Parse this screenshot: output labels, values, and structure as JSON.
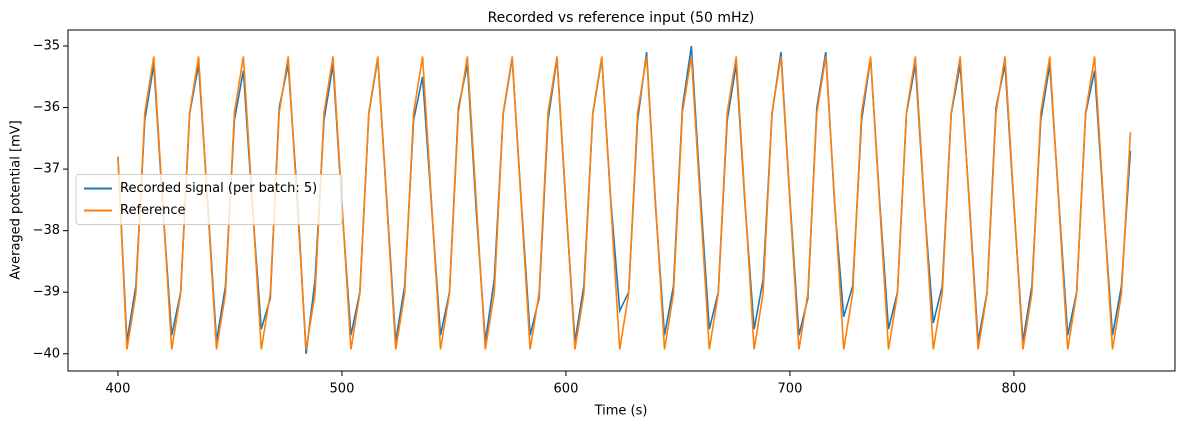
{
  "chart_data": {
    "type": "line",
    "title": "Recorded vs reference input (50 mHz)",
    "x_label": "Time (s)",
    "y_label": "Averaged potential [mV]",
    "x": [
      400,
      404,
      408,
      412,
      416,
      420,
      424,
      428,
      432,
      436,
      440,
      444,
      448,
      452,
      456,
      460,
      464,
      468,
      472,
      476,
      480,
      484,
      488,
      492,
      496,
      500,
      504,
      508,
      512,
      516,
      520,
      524,
      528,
      532,
      536,
      540,
      544,
      548,
      552,
      556,
      560,
      564,
      568,
      572,
      576,
      580,
      584,
      588,
      592,
      596,
      600,
      604,
      608,
      612,
      616,
      620,
      624,
      628,
      632,
      636,
      640,
      644,
      648,
      652,
      656,
      660,
      664,
      668,
      672,
      676,
      680,
      684,
      688,
      692,
      696,
      700,
      704,
      708,
      712,
      716,
      720,
      724,
      728,
      732,
      736,
      740,
      744,
      748,
      752,
      756,
      760,
      764,
      768,
      772,
      776,
      780,
      784,
      788,
      792,
      796,
      800,
      804,
      808,
      812,
      816,
      820,
      824,
      828,
      832,
      836,
      840,
      844,
      848,
      852
    ],
    "series": [
      {
        "name": "Recorded signal (per batch: 5)",
        "color": "#1f77b4",
        "values": [
          -36.8,
          -39.8,
          -38.9,
          -36.2,
          -35.3,
          -37.6,
          -39.7,
          -39.0,
          -36.1,
          -35.3,
          -37.5,
          -39.8,
          -38.9,
          -36.2,
          -35.4,
          -37.6,
          -39.6,
          -39.1,
          -36.0,
          -35.3,
          -37.4,
          -40.0,
          -38.8,
          -36.2,
          -35.3,
          -37.6,
          -39.7,
          -39.0,
          -36.1,
          -35.2,
          -37.5,
          -39.8,
          -38.9,
          -36.2,
          -35.5,
          -37.6,
          -39.7,
          -39.0,
          -36.0,
          -35.3,
          -37.7,
          -39.8,
          -38.8,
          -36.1,
          -35.2,
          -37.5,
          -39.7,
          -39.1,
          -36.2,
          -35.2,
          -37.6,
          -39.8,
          -38.9,
          -36.1,
          -35.2,
          -37.5,
          -39.3,
          -39.0,
          -36.2,
          -35.1,
          -37.6,
          -39.7,
          -38.9,
          -36.0,
          -35.0,
          -37.4,
          -39.6,
          -39.0,
          -36.2,
          -35.3,
          -37.6,
          -39.6,
          -38.8,
          -36.1,
          -35.1,
          -37.5,
          -39.7,
          -39.1,
          -36.0,
          -35.1,
          -37.6,
          -39.4,
          -38.9,
          -36.2,
          -35.2,
          -37.5,
          -39.6,
          -39.0,
          -36.1,
          -35.3,
          -37.6,
          -39.5,
          -38.9,
          -36.1,
          -35.3,
          -37.5,
          -39.8,
          -39.0,
          -36.0,
          -35.3,
          -37.6,
          -39.8,
          -38.9,
          -36.2,
          -35.3,
          -37.5,
          -39.7,
          -39.0,
          -36.1,
          -35.4,
          -37.6,
          -39.7,
          -38.9,
          -36.7
        ]
      },
      {
        "name": "Reference",
        "color": "#ff7f0e",
        "values": [
          -36.8,
          -39.93,
          -39.02,
          -36.08,
          -35.17,
          -37.55,
          -39.93,
          -39.02,
          -36.08,
          -35.17,
          -37.55,
          -39.93,
          -39.02,
          -36.08,
          -35.17,
          -37.55,
          -39.93,
          -39.02,
          -36.08,
          -35.17,
          -37.55,
          -39.93,
          -39.02,
          -36.08,
          -35.17,
          -37.55,
          -39.93,
          -39.02,
          -36.08,
          -35.17,
          -37.55,
          -39.93,
          -39.02,
          -36.08,
          -35.17,
          -37.55,
          -39.93,
          -39.02,
          -36.08,
          -35.17,
          -37.55,
          -39.93,
          -39.02,
          -36.08,
          -35.17,
          -37.55,
          -39.93,
          -39.02,
          -36.08,
          -35.17,
          -37.55,
          -39.93,
          -39.02,
          -36.08,
          -35.17,
          -37.55,
          -39.93,
          -39.02,
          -36.08,
          -35.17,
          -37.55,
          -39.93,
          -39.02,
          -36.08,
          -35.17,
          -37.55,
          -39.93,
          -39.02,
          -36.08,
          -35.17,
          -37.55,
          -39.93,
          -39.02,
          -36.08,
          -35.17,
          -37.55,
          -39.93,
          -39.02,
          -36.08,
          -35.17,
          -37.55,
          -39.93,
          -39.02,
          -36.08,
          -35.17,
          -37.55,
          -39.93,
          -39.02,
          -36.08,
          -35.17,
          -37.55,
          -39.93,
          -39.02,
          -36.08,
          -35.17,
          -37.55,
          -39.93,
          -39.02,
          -36.08,
          -35.17,
          -37.55,
          -39.93,
          -39.02,
          -36.08,
          -35.17,
          -37.55,
          -39.93,
          -39.02,
          -36.08,
          -35.17,
          -37.55,
          -39.93,
          -39.02,
          -36.4
        ]
      }
    ],
    "xlim": [
      377.7,
      871.9
    ],
    "ylim": [
      -40.28,
      -34.74
    ],
    "xticks": [
      400,
      500,
      600,
      700,
      800
    ],
    "yticks": [
      {
        "value": -40,
        "label": "−40"
      },
      {
        "value": -39,
        "label": "−39"
      },
      {
        "value": -38,
        "label": "−38"
      },
      {
        "value": -37,
        "label": "−37"
      },
      {
        "value": -36,
        "label": "−36"
      },
      {
        "value": -35,
        "label": "−35"
      }
    ],
    "grid": false,
    "legend": "center left"
  }
}
